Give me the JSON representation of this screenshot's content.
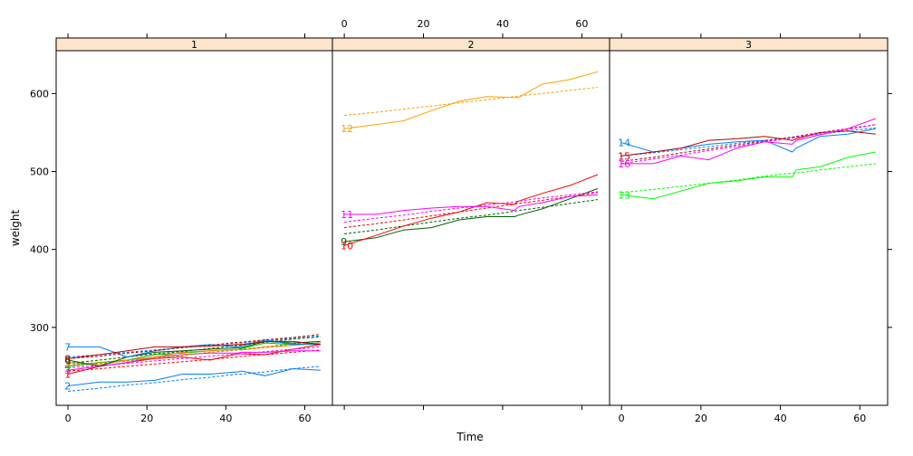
{
  "chart_data": {
    "type": "line",
    "title": "",
    "xlabel": "Time",
    "ylabel": "weight",
    "xlim": [
      -3,
      67
    ],
    "ylim": [
      200,
      655
    ],
    "x_ticks": [
      0,
      20,
      40,
      60
    ],
    "y_ticks": [
      300,
      400,
      500,
      600
    ],
    "x": [
      0,
      8,
      15,
      22,
      29,
      36,
      43,
      44,
      50,
      57,
      64
    ],
    "panels": [
      {
        "strip": "1",
        "series": [
          {
            "name": "1",
            "color": "#ff0000",
            "values": [
              240,
              250,
              255,
              260,
              262,
              258,
              266,
              266,
              265,
              272,
              278
            ],
            "fit": [
              244,
              247,
              250,
              253,
              256,
              259,
              262,
              263,
              265,
              268,
              271
            ]
          },
          {
            "name": "2",
            "color": "#0080ff",
            "values": [
              225,
              230,
              230,
              232,
              240,
              240,
              243,
              244,
              238,
              247,
              245
            ],
            "fit": [
              218,
              222,
              226,
              229,
              233,
              236,
              240,
              240,
              243,
              247,
              250
            ]
          },
          {
            "name": "3",
            "color": "#ff00ff",
            "values": [
              245,
              250,
              255,
              262,
              265,
              267,
              267,
              268,
              268,
              270,
              270
            ],
            "fit": [
              248,
              251,
              254,
              257,
              260,
              263,
              266,
              266,
              269,
              272,
              275
            ]
          },
          {
            "name": "4",
            "color": "#00c000",
            "values": [
              250,
              255,
              258,
              265,
              267,
              270,
              272,
              273,
              280,
              278,
              280
            ],
            "fit": [
              250,
              254,
              257,
              261,
              264,
              268,
              271,
              272,
              275,
              279,
              282
            ]
          },
          {
            "name": "5",
            "color": "#ff8000",
            "values": [
              255,
              252,
              258,
              262,
              268,
              270,
              272,
              271,
              275,
              277,
              280
            ],
            "fit": [
              252,
              255,
              258,
              261,
              265,
              268,
              271,
              271,
              274,
              277,
              280
            ]
          },
          {
            "name": "6",
            "color": "#006000",
            "values": [
              258,
              250,
              262,
              268,
              270,
              272,
              274,
              274,
              282,
              280,
              282
            ],
            "fit": [
              254,
              258,
              262,
              266,
              269,
              273,
              277,
              277,
              281,
              285,
              288
            ]
          },
          {
            "name": "7",
            "color": "#0080ff",
            "values": [
              275,
              275,
              262,
              270,
              275,
              278,
              275,
              276,
              284,
              278,
              278
            ],
            "fit": [
              262,
              265,
              268,
              271,
              274,
              277,
              280,
              280,
              283,
              286,
              289
            ]
          },
          {
            "name": "8",
            "color": "#c00000",
            "values": [
              260,
              265,
              270,
              275,
              275,
              276,
              278,
              278,
              282,
              282,
              278
            ],
            "fit": [
              260,
              263,
              267,
              270,
              274,
              277,
              281,
              281,
              284,
              287,
              291
            ]
          }
        ]
      },
      {
        "strip": "2",
        "series": [
          {
            "name": "9",
            "color": "#006000",
            "values": [
              410,
              415,
              425,
              428,
              438,
              442,
              442,
              444,
              452,
              465,
              478
            ],
            "fit": [
              420,
              425,
              430,
              435,
              440,
              444,
              449,
              450,
              454,
              459,
              464
            ]
          },
          {
            "name": "10",
            "color": "#ff0000",
            "values": [
              405,
              418,
              430,
              440,
              448,
              460,
              458,
              462,
              472,
              482,
              496
            ],
            "fit": [
              428,
              433,
              438,
              443,
              448,
              453,
              458,
              459,
              463,
              468,
              473
            ]
          },
          {
            "name": "11",
            "color": "#ff00ff",
            "values": [
              445,
              445,
              450,
              453,
              455,
              455,
              450,
              455,
              460,
              468,
              470
            ],
            "fit": [
              435,
              440,
              444,
              449,
              453,
              457,
              461,
              462,
              466,
              470,
              474
            ]
          },
          {
            "name": "12",
            "color": "#ffa000",
            "values": [
              555,
              560,
              565,
              578,
              590,
              596,
              595,
              595,
              612,
              618,
              628
            ],
            "fit": [
              572,
              576,
              580,
              584,
              588,
              592,
              596,
              597,
              600,
              604,
              608
            ]
          }
        ]
      },
      {
        "strip": "3",
        "series": [
          {
            "name": "13",
            "color": "#00ff00",
            "values": [
              470,
              465,
              475,
              485,
              488,
              493,
              493,
              502,
              506,
              518,
              525
            ],
            "fit": [
              473,
              477,
              481,
              485,
              489,
              494,
              498,
              498,
              502,
              506,
              510
            ]
          },
          {
            "name": "14",
            "color": "#0080ff",
            "values": [
              537,
              525,
              530,
              535,
              538,
              540,
              525,
              530,
              545,
              548,
              555
            ],
            "fit": [
              520,
              524,
              528,
              532,
              536,
              540,
              544,
              544,
              548,
              552,
              556
            ]
          },
          {
            "name": "15",
            "color": "#c00000",
            "values": [
              520,
              525,
              530,
              540,
              542,
              545,
              540,
              542,
              550,
              552,
              548
            ],
            "fit": [
              513,
              518,
              524,
              529,
              534,
              539,
              544,
              545,
              550,
              555,
              560
            ]
          },
          {
            "name": "16",
            "color": "#ff00ff",
            "values": [
              510,
              510,
              520,
              515,
              530,
              538,
              535,
              540,
              547,
              555,
              568
            ],
            "fit": [
              510,
              516,
              521,
              527,
              532,
              538,
              543,
              544,
              549,
              554,
              560
            ]
          }
        ]
      }
    ]
  }
}
